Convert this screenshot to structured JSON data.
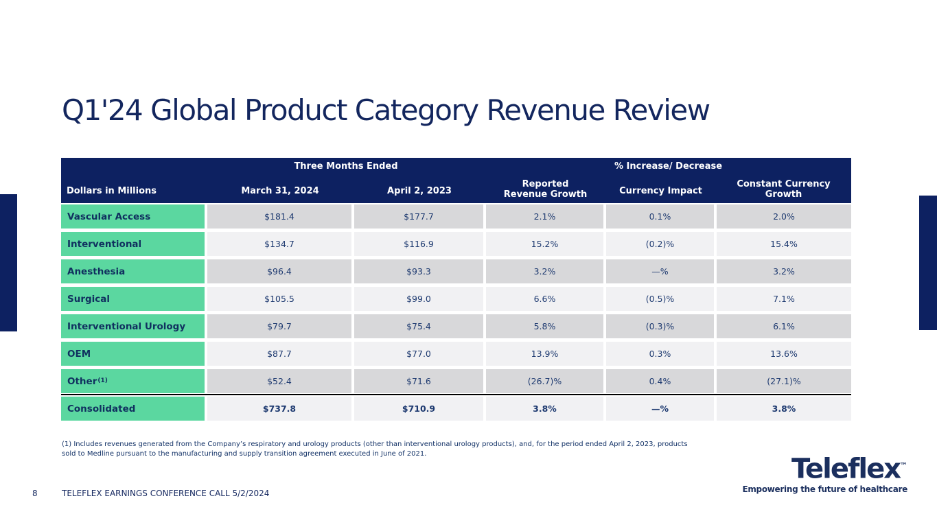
{
  "slide": {
    "title": "Q1'24 Global Product Category Revenue Review",
    "footnote": "(1) Includes revenues generated from the Company’s respiratory and urology products (other than interventional urology products), and, for the period ended April 2, 2023, products\nsold to Medline pursuant to the manufacturing and supply transition agreement executed in June of 2021.",
    "page_number": "8",
    "footer_text": "TELEFLEX EARNINGS CONFERENCE CALL 5/2/2024"
  },
  "logo": {
    "wordmark": "Teleflex",
    "trademark": "™",
    "tagline": "Empowering the future of healthcare"
  },
  "colors": {
    "navy": "#0d2161",
    "mint_green": "#5bd7a0",
    "row_dark": "#d8d8da",
    "row_light": "#f1f1f3",
    "text_navy": "#13265e"
  },
  "table": {
    "group_headers": {
      "three_months": "Three Months Ended",
      "pct_change": "% Increase/ Decrease"
    },
    "columns": {
      "c0": "Dollars in Millions",
      "c1": "March 31, 2024",
      "c2": "April 2, 2023",
      "c3": "Reported\nRevenue Growth",
      "c4": "Currency Impact",
      "c5": "Constant Currency\nGrowth"
    },
    "rows": [
      {
        "category": "Vascular Access",
        "sup": "",
        "v1": "$181.4",
        "v2": "$177.7",
        "v3": "2.1%",
        "v4": "0.1%",
        "v5": "2.0%"
      },
      {
        "category": "Interventional",
        "sup": "",
        "v1": "$134.7",
        "v2": "$116.9",
        "v3": "15.2%",
        "v4": "(0.2)%",
        "v5": "15.4%"
      },
      {
        "category": "Anesthesia",
        "sup": "",
        "v1": "$96.4",
        "v2": "$93.3",
        "v3": "3.2%",
        "v4": "—%",
        "v5": "3.2%"
      },
      {
        "category": "Surgical",
        "sup": "",
        "v1": "$105.5",
        "v2": "$99.0",
        "v3": "6.6%",
        "v4": "(0.5)%",
        "v5": "7.1%"
      },
      {
        "category": "Interventional Urology",
        "sup": "",
        "v1": "$79.7",
        "v2": "$75.4",
        "v3": "5.8%",
        "v4": "(0.3)%",
        "v5": "6.1%"
      },
      {
        "category": "OEM",
        "sup": "",
        "v1": "$87.7",
        "v2": "$77.0",
        "v3": "13.9%",
        "v4": "0.3%",
        "v5": "13.6%"
      },
      {
        "category": "Other",
        "sup": "(1)",
        "v1": "$52.4",
        "v2": "$71.6",
        "v3": "(26.7)%",
        "v4": "0.4%",
        "v5": "(27.1)%"
      },
      {
        "category": "Consolidated",
        "sup": "",
        "v1": "$737.8",
        "v2": "$710.9",
        "v3": "3.8%",
        "v4": "—%",
        "v5": "3.8%"
      }
    ]
  },
  "chart_data": {
    "type": "table",
    "title": "Q1'24 Global Product Category Revenue Review",
    "units": "Dollars in Millions",
    "columns": [
      "Dollars in Millions",
      "March 31, 2024",
      "April 2, 2023",
      "Reported Revenue Growth",
      "Currency Impact",
      "Constant Currency Growth"
    ],
    "rows": [
      {
        "category": "Vascular Access",
        "march_31_2024": 181.4,
        "april_2_2023": 177.7,
        "reported_revenue_growth_pct": 2.1,
        "currency_impact_pct": 0.1,
        "constant_currency_growth_pct": 2.0
      },
      {
        "category": "Interventional",
        "march_31_2024": 134.7,
        "april_2_2023": 116.9,
        "reported_revenue_growth_pct": 15.2,
        "currency_impact_pct": -0.2,
        "constant_currency_growth_pct": 15.4
      },
      {
        "category": "Anesthesia",
        "march_31_2024": 96.4,
        "april_2_2023": 93.3,
        "reported_revenue_growth_pct": 3.2,
        "currency_impact_pct": 0,
        "constant_currency_growth_pct": 3.2
      },
      {
        "category": "Surgical",
        "march_31_2024": 105.5,
        "april_2_2023": 99.0,
        "reported_revenue_growth_pct": 6.6,
        "currency_impact_pct": -0.5,
        "constant_currency_growth_pct": 7.1
      },
      {
        "category": "Interventional Urology",
        "march_31_2024": 79.7,
        "april_2_2023": 75.4,
        "reported_revenue_growth_pct": 5.8,
        "currency_impact_pct": -0.3,
        "constant_currency_growth_pct": 6.1
      },
      {
        "category": "OEM",
        "march_31_2024": 87.7,
        "april_2_2023": 77.0,
        "reported_revenue_growth_pct": 13.9,
        "currency_impact_pct": 0.3,
        "constant_currency_growth_pct": 13.6
      },
      {
        "category": "Other",
        "march_31_2024": 52.4,
        "april_2_2023": 71.6,
        "reported_revenue_growth_pct": -26.7,
        "currency_impact_pct": 0.4,
        "constant_currency_growth_pct": -27.1
      },
      {
        "category": "Consolidated",
        "march_31_2024": 737.8,
        "april_2_2023": 710.9,
        "reported_revenue_growth_pct": 3.8,
        "currency_impact_pct": 0,
        "constant_currency_growth_pct": 3.8
      }
    ]
  }
}
